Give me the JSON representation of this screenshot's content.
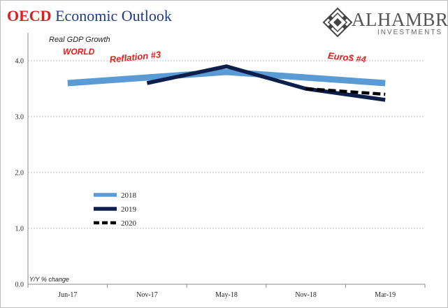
{
  "header": {
    "title_brand": "OECD",
    "title_rest": "Economic Outlook",
    "logo_name": "ALHAMBRA",
    "logo_sub": "INVESTMENTS"
  },
  "annotations": {
    "subtitle_1": "Real GDP Growth",
    "subtitle_2": "WORLD",
    "reflation": "Reflation #3",
    "euro": "Euro$ #4",
    "unit_note": "Y/Y % change"
  },
  "colors": {
    "title_red": "#e31b1b",
    "title_blue": "#1f3a8a",
    "series_2018": "#5b9bd5",
    "series_2019": "#0d1f4a",
    "series_2020": "#000000"
  },
  "chart_data": {
    "type": "line",
    "categories": [
      "Jun-17",
      "Nov-17",
      "May-18",
      "Nov-18",
      "Mar-19"
    ],
    "series": [
      {
        "name": "2018",
        "values": [
          3.6,
          3.7,
          3.8,
          3.7,
          3.6
        ]
      },
      {
        "name": "2019",
        "values": [
          null,
          3.6,
          3.9,
          3.5,
          3.3
        ]
      },
      {
        "name": "2020",
        "values": [
          null,
          null,
          null,
          3.5,
          3.4
        ]
      }
    ],
    "ylim": [
      0.0,
      4.5
    ],
    "yticks": [
      "0.0",
      "1.0",
      "2.0",
      "3.0",
      "4.0"
    ],
    "grid": "horizontal dashed",
    "legend_position": "lower-left"
  }
}
